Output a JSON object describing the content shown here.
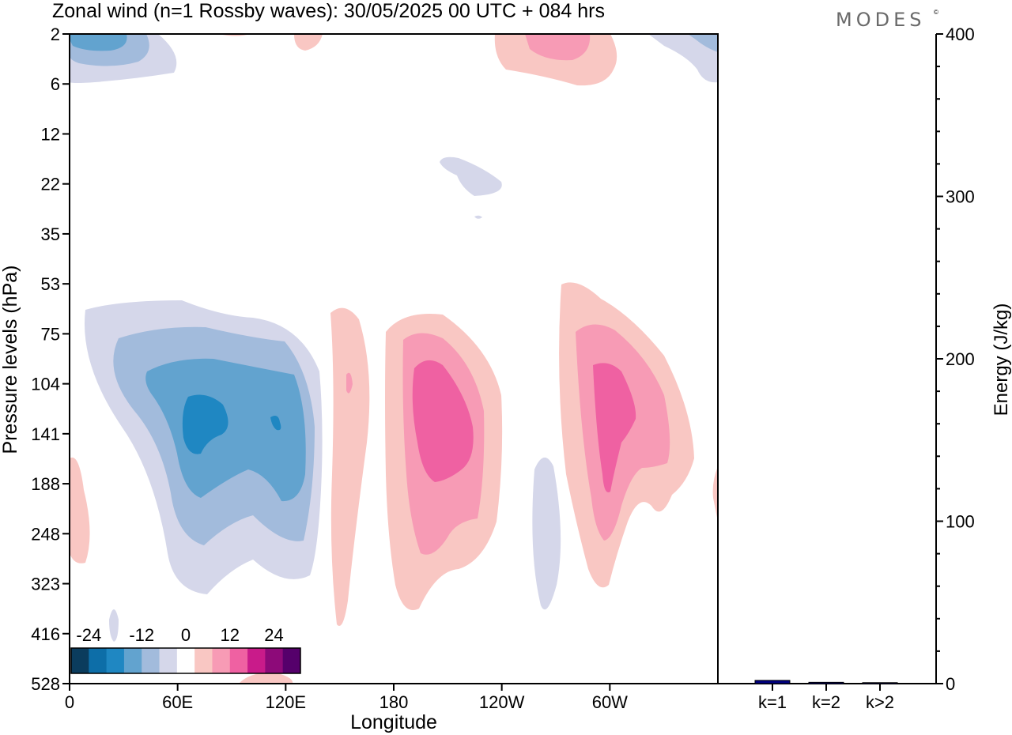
{
  "header": {
    "title": "Zonal wind (n=1 Rossby waves):  30/05/2025  00 UTC  + 084 hrs",
    "brand": "MODES",
    "brand_mark": "©"
  },
  "colors": {
    "neg_levels": [
      "#0b3c5d",
      "#0d6ea8",
      "#1f87c2",
      "#62a3cf",
      "#a2bbdc",
      "#d5d7ea"
    ],
    "zero": "#ffffff",
    "pos_levels": [
      "#f9c7c3",
      "#f79bb5",
      "#ef61a2",
      "#c91b8a",
      "#8d0a79",
      "#55006b"
    ],
    "energy_bar": "#000080"
  },
  "chart_data": [
    {
      "type": "heatmap",
      "title": "Zonal wind (n=1 Rossby waves):  30/05/2025  00 UTC  + 084 hrs",
      "xlabel": "Longitude",
      "ylabel": "Pressure levels (hPa)",
      "x_ticks": [
        "0",
        "60E",
        "120E",
        "180",
        "120W",
        "60W"
      ],
      "y_ticks": [
        "2",
        "6",
        "12",
        "22",
        "35",
        "53",
        "75",
        "104",
        "141",
        "188",
        "248",
        "323",
        "416",
        "528"
      ],
      "colorbar": {
        "tick_labels": [
          "-24",
          "-12",
          "0",
          "12",
          "24"
        ],
        "levels": [
          -30,
          -25,
          -20,
          -15,
          -10,
          -5,
          5,
          10,
          15,
          20,
          25,
          30
        ]
      },
      "contour_features": [
        {
          "sign": "negative",
          "lon": 70,
          "level": "141",
          "peak": -20
        },
        {
          "sign": "positive",
          "lon": 195,
          "level": "141",
          "peak": 15
        },
        {
          "sign": "positive",
          "lon": 290,
          "level": "141",
          "peak": 15
        },
        {
          "sign": "positive",
          "lon": 250,
          "level": "2",
          "peak": 10
        },
        {
          "sign": "negative",
          "lon": 20,
          "level": "2",
          "peak": -15
        },
        {
          "sign": "negative",
          "lon": 237,
          "level": "248",
          "peak": -5
        }
      ]
    },
    {
      "type": "bar",
      "ylabel": "Energy (J/kg)",
      "categories": [
        "k=1",
        "k=2",
        "k>2"
      ],
      "values": [
        2.0,
        0.8,
        0.6
      ],
      "ylim": [
        0,
        400
      ],
      "y_ticks": [
        "0",
        "100",
        "200",
        "300",
        "400"
      ]
    }
  ]
}
